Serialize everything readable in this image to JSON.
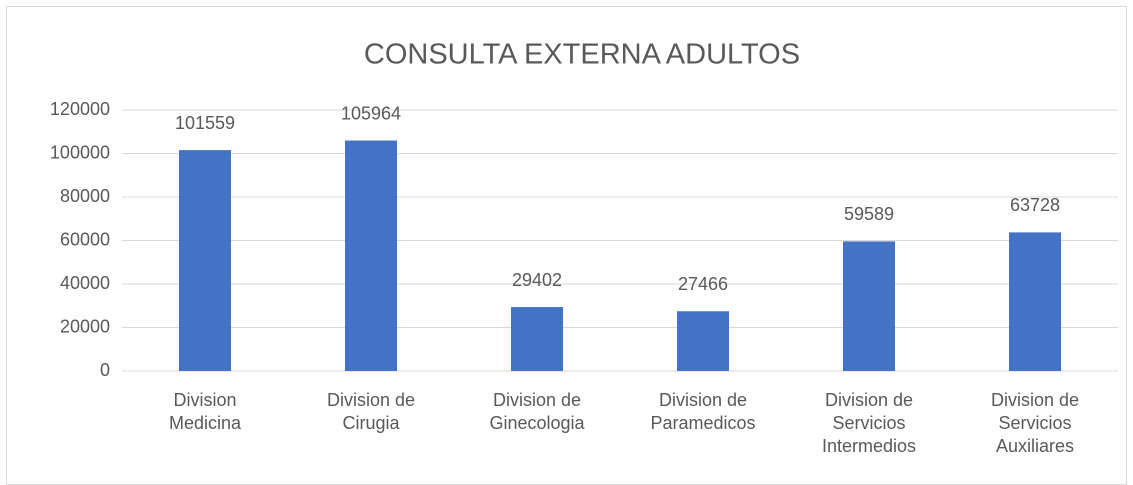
{
  "chart_data": {
    "type": "bar",
    "title": "CONSULTA EXTERNA ADULTOS",
    "categories": [
      "Division Medicina",
      "Division de Cirugia",
      "Division de Ginecologia",
      "Division de Paramedicos",
      "Division de Servicios Intermedios",
      "Division de Servicios Auxiliares"
    ],
    "values": [
      101559,
      105964,
      29402,
      27466,
      59589,
      63728
    ],
    "color": "#4472c4",
    "ylim": [
      0,
      120000
    ],
    "yticks": [
      0,
      20000,
      40000,
      60000,
      80000,
      100000,
      120000
    ],
    "grid": true,
    "data_labels": true
  }
}
